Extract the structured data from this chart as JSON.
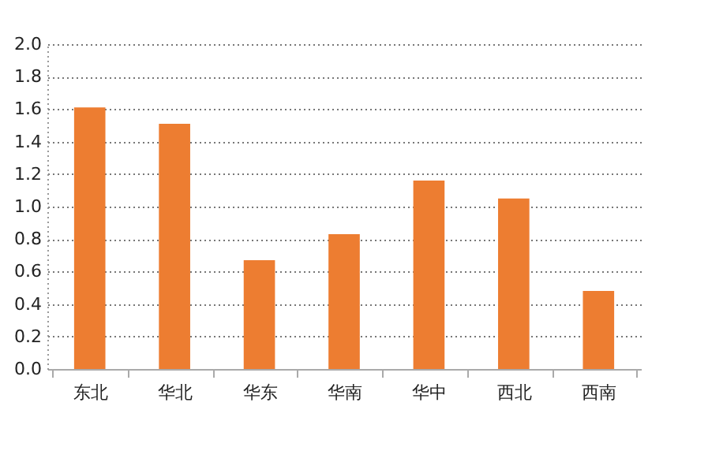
{
  "chart_data": {
    "type": "bar",
    "categories": [
      "东北",
      "华北",
      "华东",
      "华南",
      "华中",
      "西北",
      "西南"
    ],
    "values": [
      1.61,
      1.51,
      0.67,
      0.83,
      1.16,
      1.05,
      0.48
    ],
    "color": "#ed7d31",
    "ylim": [
      0,
      2
    ],
    "yticks": [
      {
        "value": 0,
        "label": "0.0"
      },
      0.2,
      0.4,
      0.6,
      0.8,
      {
        "value": 1,
        "label": "1.0"
      },
      1.2,
      1.4,
      1.6,
      1.8,
      {
        "value": 2,
        "label": "2.0"
      }
    ],
    "grid": "y"
  }
}
